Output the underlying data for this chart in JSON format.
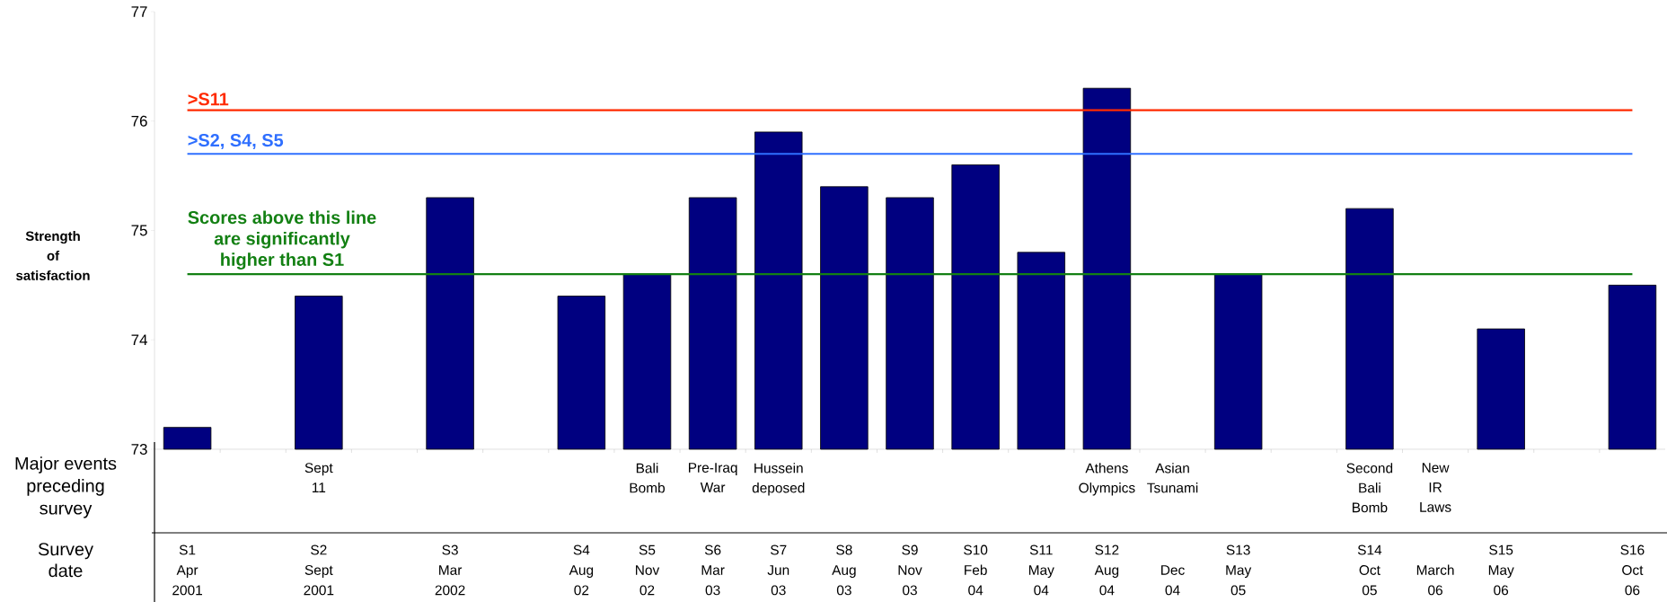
{
  "chart_data": {
    "type": "bar",
    "ylabel": "Strength of satisfaction",
    "xlabel": "Survey date",
    "categories": [
      "S1 Apr 2001",
      null,
      "S2 Sept 2001",
      null,
      "S3 Mar 2002",
      null,
      "S4 Aug 02",
      "S5 Nov 02",
      "S6 Mar 03",
      "S7 Jun 03",
      "S8 Aug 03",
      "S9 Nov 03",
      "S10 Feb 04",
      "S11 May 04",
      "S12 Aug 04",
      "Dec 04",
      "S13 May 05",
      null,
      "S14 Oct 05",
      "March 06",
      "S15 May 06",
      null,
      "S16 Oct 06"
    ],
    "values": [
      73.2,
      null,
      74.4,
      null,
      75.3,
      null,
      74.4,
      74.6,
      75.3,
      75.9,
      75.4,
      75.3,
      75.6,
      74.8,
      76.3,
      null,
      74.6,
      null,
      75.2,
      null,
      74.1,
      null,
      74.5
    ],
    "color": "#000080",
    "ylim": [
      73,
      77
    ],
    "yticks": [
      73,
      74,
      75,
      76,
      77
    ],
    "ref_lines": [
      {
        "axis": "y",
        "value": 76.1,
        "label": ">S11",
        "color": "#ff2a00"
      },
      {
        "axis": "y",
        "value": 75.7,
        "label": ">S2, S4, S5",
        "color": "#2f6fff"
      },
      {
        "axis": "y",
        "value": 74.6,
        "label": "Scores above this line are significantly higher than S1",
        "color": "#138013"
      }
    ],
    "annotations": [
      "Major events preceding survey",
      "Sept 11",
      "Bali Bomb",
      "Pre-Iraq War",
      "Hussein deposed",
      "Athens Olympics",
      "Asian Tsunami",
      "Second Bali Bomb",
      "New IR Laws"
    ]
  }
}
